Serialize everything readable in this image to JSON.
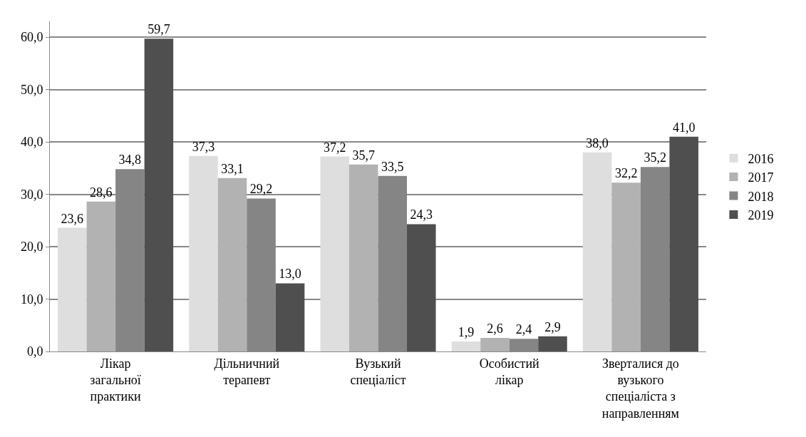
{
  "chart_data": {
    "type": "bar",
    "categories": [
      "Лікар загальної практики",
      "Дільничний терапевт",
      "Вузький спеціаліст",
      "Особистий лікар",
      "Зверталися до вузького спеціаліста з направленням"
    ],
    "series": [
      {
        "name": "2016",
        "color": "#dedede",
        "values": [
          23.6,
          37.3,
          37.2,
          1.9,
          38.0
        ],
        "value_labels": [
          "23,6",
          "37,3",
          "37,2",
          "1,9",
          "38,0"
        ]
      },
      {
        "name": "2017",
        "color": "#b2b2b2",
        "values": [
          28.6,
          33.1,
          35.7,
          2.6,
          32.2
        ],
        "value_labels": [
          "28,6",
          "33,1",
          "35,7",
          "2,6",
          "32,2"
        ]
      },
      {
        "name": "2018",
        "color": "#858585",
        "values": [
          34.8,
          29.2,
          33.5,
          2.4,
          35.2
        ],
        "value_labels": [
          "34,8",
          "29,2",
          "33,5",
          "2,4",
          "35,2"
        ]
      },
      {
        "name": "2019",
        "color": "#4f4f4f",
        "values": [
          59.7,
          13.0,
          24.3,
          2.9,
          41.0
        ],
        "value_labels": [
          "59,7",
          "13,0",
          "24,3",
          "2,9",
          "41,0"
        ]
      }
    ],
    "ylim": [
      0,
      63
    ],
    "yticks": [
      {
        "value": 0,
        "label": "0,0"
      },
      {
        "value": 10,
        "label": "10,0"
      },
      {
        "value": 20,
        "label": "20,0"
      },
      {
        "value": 30,
        "label": "30,0"
      },
      {
        "value": 40,
        "label": "40,0"
      },
      {
        "value": 50,
        "label": "50,0"
      },
      {
        "value": 60,
        "label": "60,0"
      }
    ],
    "grid": "y",
    "legend": "right"
  }
}
